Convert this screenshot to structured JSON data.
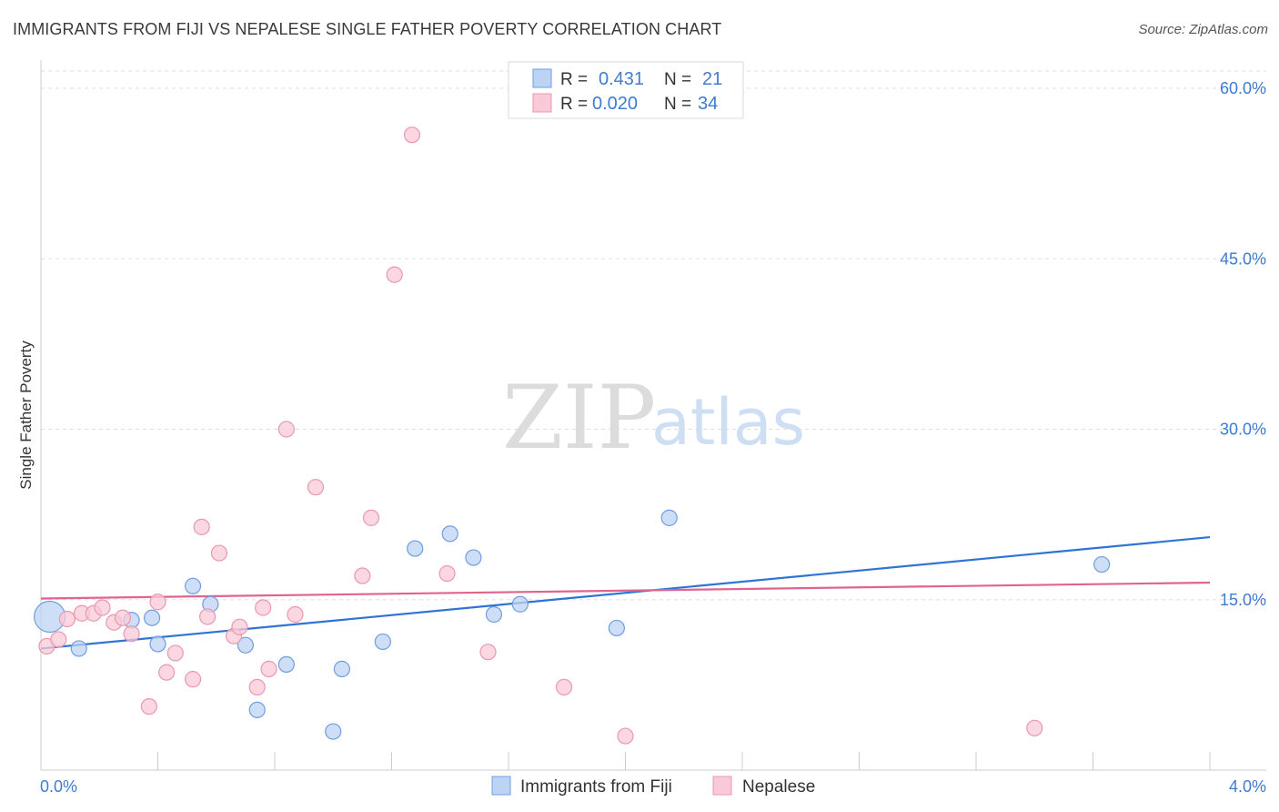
{
  "title": "IMMIGRANTS FROM FIJI VS NEPALESE SINGLE FATHER POVERTY CORRELATION CHART",
  "source": "Source: ZipAtlas.com",
  "watermark": {
    "zip": "ZIP",
    "atlas": "atlas"
  },
  "colors": {
    "fiji_fill": "#bcd3f3",
    "fiji_stroke": "#6f9ee0",
    "fiji_line": "#2f74d4",
    "nepal_fill": "#f9c9d8",
    "nepal_stroke": "#e898b2",
    "nepal_line": "#e0648e",
    "tick_text": "#3f7bd0",
    "grid": "#dddddd"
  },
  "legend_top": {
    "rows": [
      {
        "r_label": "R =",
        "r_value": "0.431",
        "n_label": "N =",
        "n_value": "21",
        "series": "fiji"
      },
      {
        "r_label": "R =",
        "r_value": "0.020",
        "n_label": "N =",
        "n_value": "34",
        "series": "nepal"
      }
    ]
  },
  "legend_bottom": {
    "items": [
      {
        "label": "Immigrants from Fiji",
        "series": "fiji"
      },
      {
        "label": "Nepalese",
        "series": "nepal"
      }
    ]
  },
  "chart_data": {
    "type": "scatter",
    "title": "IMMIGRANTS FROM FIJI VS NEPALESE SINGLE FATHER POVERTY CORRELATION CHART",
    "xlabel": "",
    "ylabel": "Single Father Poverty",
    "xlim": [
      0.0,
      4.0
    ],
    "ylim": [
      0.0,
      60.0
    ],
    "x_tick_labels": [
      "0.0%",
      "4.0%"
    ],
    "y_ticks": [
      15.0,
      30.0,
      45.0,
      60.0
    ],
    "y_tick_labels": [
      "15.0%",
      "30.0%",
      "45.0%",
      "60.0%"
    ],
    "grid": true,
    "legend_position": "top-center",
    "series": [
      {
        "name": "Immigrants from Fiji",
        "key": "fiji",
        "trend": [
          [
            0.0,
            10.7
          ],
          [
            4.0,
            20.5
          ]
        ],
        "points": [
          {
            "x": 0.03,
            "y": 13.5,
            "big": true
          },
          {
            "x": 0.13,
            "y": 10.7
          },
          {
            "x": 0.31,
            "y": 13.2
          },
          {
            "x": 0.38,
            "y": 13.4
          },
          {
            "x": 0.4,
            "y": 11.1
          },
          {
            "x": 0.52,
            "y": 16.2
          },
          {
            "x": 0.58,
            "y": 14.6
          },
          {
            "x": 0.7,
            "y": 11.0
          },
          {
            "x": 0.74,
            "y": 5.3
          },
          {
            "x": 0.84,
            "y": 9.3
          },
          {
            "x": 1.0,
            "y": 3.4
          },
          {
            "x": 1.03,
            "y": 8.9
          },
          {
            "x": 1.17,
            "y": 11.3
          },
          {
            "x": 1.28,
            "y": 19.5
          },
          {
            "x": 1.4,
            "y": 20.8
          },
          {
            "x": 1.48,
            "y": 18.7
          },
          {
            "x": 1.55,
            "y": 13.7
          },
          {
            "x": 1.64,
            "y": 14.6
          },
          {
            "x": 1.97,
            "y": 12.5
          },
          {
            "x": 2.15,
            "y": 22.2
          },
          {
            "x": 3.63,
            "y": 18.1
          }
        ]
      },
      {
        "name": "Nepalese",
        "key": "nepal",
        "trend": [
          [
            0.0,
            15.1
          ],
          [
            4.0,
            16.5
          ]
        ],
        "points": [
          {
            "x": 0.02,
            "y": 10.9
          },
          {
            "x": 0.06,
            "y": 11.5
          },
          {
            "x": 0.09,
            "y": 13.3
          },
          {
            "x": 0.14,
            "y": 13.8
          },
          {
            "x": 0.18,
            "y": 13.8
          },
          {
            "x": 0.21,
            "y": 14.3
          },
          {
            "x": 0.25,
            "y": 13.0
          },
          {
            "x": 0.28,
            "y": 13.4
          },
          {
            "x": 0.31,
            "y": 12.0
          },
          {
            "x": 0.4,
            "y": 14.8
          },
          {
            "x": 0.43,
            "y": 8.6
          },
          {
            "x": 0.46,
            "y": 10.3
          },
          {
            "x": 0.37,
            "y": 5.6
          },
          {
            "x": 0.52,
            "y": 8.0
          },
          {
            "x": 0.55,
            "y": 21.4
          },
          {
            "x": 0.57,
            "y": 13.5
          },
          {
            "x": 0.61,
            "y": 19.1
          },
          {
            "x": 0.66,
            "y": 11.8
          },
          {
            "x": 0.68,
            "y": 12.6
          },
          {
            "x": 0.74,
            "y": 7.3
          },
          {
            "x": 0.76,
            "y": 14.3
          },
          {
            "x": 0.78,
            "y": 8.9
          },
          {
            "x": 0.84,
            "y": 30.0
          },
          {
            "x": 0.87,
            "y": 13.7
          },
          {
            "x": 0.94,
            "y": 24.9
          },
          {
            "x": 1.1,
            "y": 17.1
          },
          {
            "x": 1.13,
            "y": 22.2
          },
          {
            "x": 1.21,
            "y": 43.6
          },
          {
            "x": 1.27,
            "y": 55.9
          },
          {
            "x": 1.39,
            "y": 17.3
          },
          {
            "x": 1.53,
            "y": 10.4
          },
          {
            "x": 1.79,
            "y": 7.3
          },
          {
            "x": 2.0,
            "y": 3.0
          },
          {
            "x": 3.4,
            "y": 3.7
          }
        ]
      }
    ]
  }
}
